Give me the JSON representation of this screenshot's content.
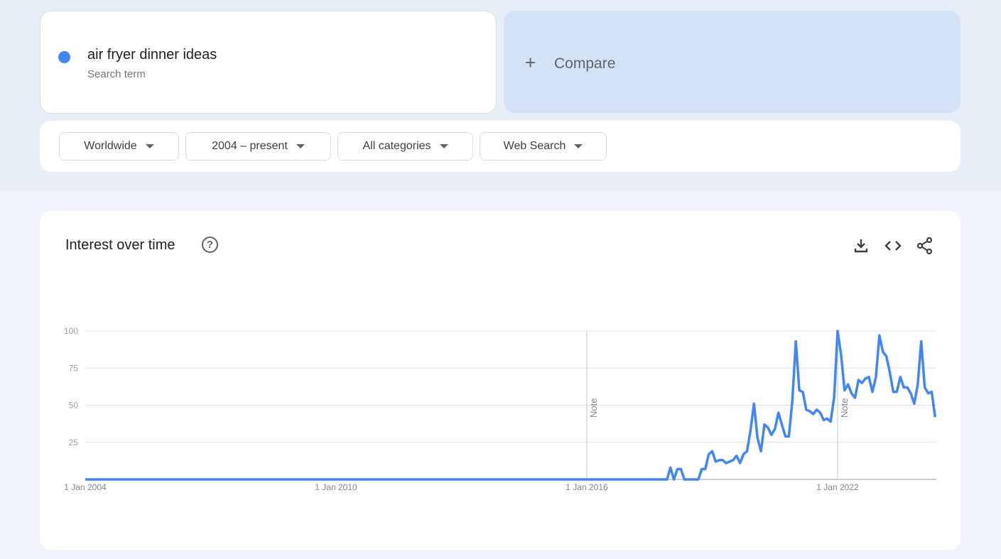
{
  "search_term": {
    "name": "air fryer dinner ideas",
    "subtitle": "Search term",
    "color": "#4285f4"
  },
  "compare": {
    "icon": "plus-icon",
    "label": "Compare"
  },
  "filters": [
    {
      "label": "Worldwide"
    },
    {
      "label": "2004 – present"
    },
    {
      "label": "All categories"
    },
    {
      "label": "Web Search"
    }
  ],
  "panel": {
    "title": "Interest over time",
    "help_icon": "help-circle-icon",
    "actions": [
      "download-icon",
      "embed-code-icon",
      "share-icon"
    ]
  },
  "chart_data": {
    "type": "line",
    "frequency": "monthly",
    "x_tick_labels": [
      "1 Jan 2004",
      "1 Jan 2010",
      "1 Jan 2016",
      "1 Jan 2022"
    ],
    "y_tick_labels": [
      "100",
      "75",
      "50",
      "25"
    ],
    "ylim": [
      0,
      100
    ],
    "grid": true,
    "notes": [
      {
        "date": "2016-01",
        "label": "Note"
      },
      {
        "date": "2022-01",
        "label": "Note"
      }
    ],
    "series": [
      {
        "color": "#4285f4",
        "values_by_year": {
          "2004": [
            0,
            0,
            0,
            0,
            0,
            0,
            0,
            0,
            0,
            0,
            0,
            0
          ],
          "2005": [
            0,
            0,
            0,
            0,
            0,
            0,
            0,
            0,
            0,
            0,
            0,
            0
          ],
          "2006": [
            0,
            0,
            0,
            0,
            0,
            0,
            0,
            0,
            0,
            0,
            0,
            0
          ],
          "2007": [
            0,
            0,
            0,
            0,
            0,
            0,
            0,
            0,
            0,
            0,
            0,
            0
          ],
          "2008": [
            0,
            0,
            0,
            0,
            0,
            0,
            0,
            0,
            0,
            0,
            0,
            0
          ],
          "2009": [
            0,
            0,
            0,
            0,
            0,
            0,
            0,
            0,
            0,
            0,
            0,
            0
          ],
          "2010": [
            0,
            0,
            0,
            0,
            0,
            0,
            0,
            0,
            0,
            0,
            0,
            0
          ],
          "2011": [
            0,
            0,
            0,
            0,
            0,
            0,
            0,
            0,
            0,
            0,
            0,
            0
          ],
          "2012": [
            0,
            0,
            0,
            0,
            0,
            0,
            0,
            0,
            0,
            0,
            0,
            0
          ],
          "2013": [
            0,
            0,
            0,
            0,
            0,
            0,
            0,
            0,
            0,
            0,
            0,
            0
          ],
          "2014": [
            0,
            0,
            0,
            0,
            0,
            0,
            0,
            0,
            0,
            0,
            0,
            0
          ],
          "2015": [
            0,
            0,
            0,
            0,
            0,
            0,
            0,
            0,
            0,
            0,
            0,
            0
          ],
          "2016": [
            0,
            0,
            0,
            0,
            0,
            0,
            0,
            0,
            0,
            0,
            0,
            0
          ],
          "2017": [
            0,
            0,
            0,
            0,
            0,
            0,
            0,
            0,
            0,
            0,
            0,
            0
          ],
          "2018": [
            8,
            0,
            7,
            7,
            0,
            0,
            0,
            0,
            0,
            7,
            7,
            17
          ],
          "2019": [
            19,
            12,
            13,
            13,
            11,
            12,
            13,
            16,
            11,
            17,
            19,
            33
          ],
          "2020": [
            51,
            28,
            19,
            37,
            35,
            30,
            34,
            45,
            37,
            29,
            29,
            53
          ],
          "2021": [
            93,
            60,
            59,
            47,
            46,
            44,
            47,
            45,
            40,
            41,
            39,
            55
          ],
          "2022": [
            100,
            84,
            60,
            64,
            58,
            55,
            67,
            65,
            68,
            69,
            59,
            69
          ],
          "2023": [
            97,
            86,
            83,
            72,
            59,
            59,
            69,
            62,
            62,
            58,
            51,
            64
          ],
          "2024": [
            93,
            62,
            58,
            59,
            42
          ]
        }
      }
    ]
  }
}
